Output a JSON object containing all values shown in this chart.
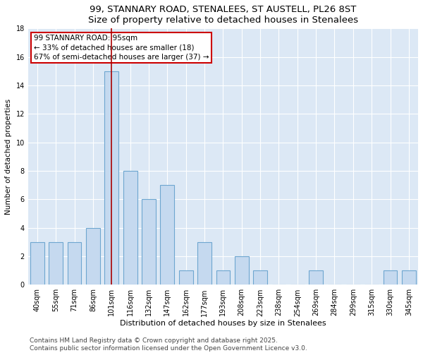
{
  "title": "99, STANNARY ROAD, STENALEES, ST AUSTELL, PL26 8ST",
  "subtitle": "Size of property relative to detached houses in Stenalees",
  "xlabel": "Distribution of detached houses by size in Stenalees",
  "ylabel": "Number of detached properties",
  "categories": [
    "40sqm",
    "55sqm",
    "71sqm",
    "86sqm",
    "101sqm",
    "116sqm",
    "132sqm",
    "147sqm",
    "162sqm",
    "177sqm",
    "193sqm",
    "208sqm",
    "223sqm",
    "238sqm",
    "254sqm",
    "269sqm",
    "284sqm",
    "299sqm",
    "315sqm",
    "330sqm",
    "345sqm"
  ],
  "values": [
    3,
    3,
    3,
    4,
    15,
    8,
    6,
    7,
    1,
    3,
    1,
    2,
    1,
    0,
    0,
    1,
    0,
    0,
    0,
    1,
    1
  ],
  "bar_color": "#c5d9ef",
  "bar_edgecolor": "#6ea6d0",
  "subject_bin_index": 4,
  "subject_label": "99 STANNARY ROAD: 95sqm",
  "annotation_line1": "← 33% of detached houses are smaller (18)",
  "annotation_line2": "67% of semi-detached houses are larger (37) →",
  "annotation_box_facecolor": "#ffffff",
  "annotation_box_edgecolor": "#cc0000",
  "vline_color": "#aa0000",
  "ylim": [
    0,
    18
  ],
  "yticks": [
    0,
    2,
    4,
    6,
    8,
    10,
    12,
    14,
    16,
    18
  ],
  "background_color": "#dce8f5",
  "grid_color": "#ffffff",
  "footer_line1": "Contains HM Land Registry data © Crown copyright and database right 2025.",
  "footer_line2": "Contains public sector information licensed under the Open Government Licence v3.0.",
  "title_fontsize": 9.5,
  "xlabel_fontsize": 8,
  "ylabel_fontsize": 7.5,
  "tick_fontsize": 7,
  "annotation_fontsize": 7.5,
  "footer_fontsize": 6.5
}
